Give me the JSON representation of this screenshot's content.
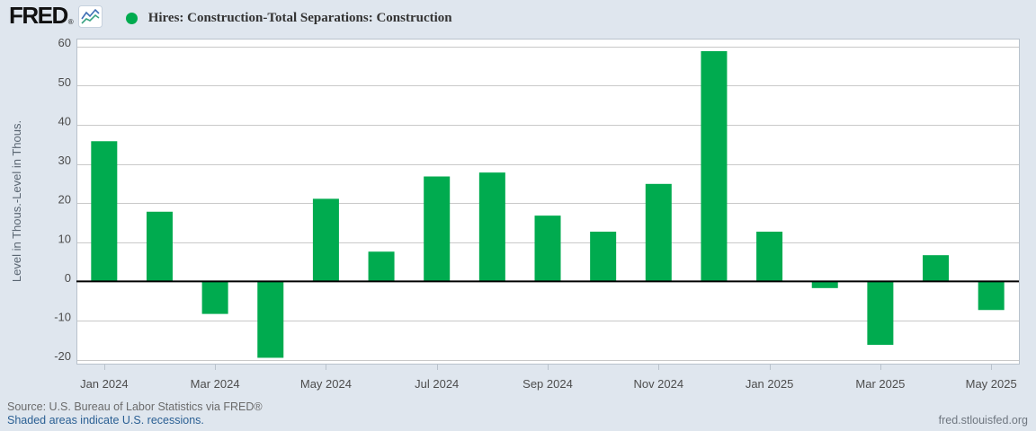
{
  "header": {
    "logo_text": "FRED",
    "logo_registered": "®",
    "title": "Hires: Construction-Total Separations: Construction"
  },
  "chart_data": {
    "type": "bar",
    "title": "Hires: Construction-Total Separations: Construction",
    "categories": [
      "Jan 2024",
      "Feb 2024",
      "Mar 2024",
      "Apr 2024",
      "May 2024",
      "Jun 2024",
      "Jul 2024",
      "Aug 2024",
      "Sep 2024",
      "Oct 2024",
      "Nov 2024",
      "Dec 2024",
      "Jan 2025",
      "Feb 2025",
      "Mar 2025",
      "Apr 2025",
      "May 2025"
    ],
    "values": [
      35.8,
      17.8,
      -8.3,
      -19.5,
      21.1,
      7.6,
      26.8,
      27.8,
      16.8,
      12.7,
      24.9,
      58.8,
      12.7,
      -1.7,
      -16.2,
      6.7,
      -7.3
    ],
    "ylabel": "Level in Thous.-Level in Thous.",
    "ylim": [
      -21,
      62
    ],
    "yticks": [
      60,
      50,
      40,
      30,
      20,
      10,
      0,
      -10,
      -20
    ],
    "xtick_labels": [
      "Jan 2024",
      "Mar 2024",
      "May 2024",
      "Jul 2024",
      "Sep 2024",
      "Nov 2024",
      "Jan 2025",
      "Mar 2025",
      "May 2025"
    ],
    "xtick_indices": [
      0,
      2,
      4,
      6,
      8,
      10,
      12,
      14,
      16
    ],
    "grid": true,
    "zero_line": true,
    "legend_position": "top-left"
  },
  "colors": {
    "background": "#dfe6ee",
    "plot_background": "#ffffff",
    "bar": "#00ab4f",
    "grid": "#c9c9c9",
    "axis_border": "#b9c2cc",
    "zero_line": "#000000",
    "tick_text": "#4d4d4d",
    "ylabel_text": "#5a6672",
    "link_blue": "#2b6094",
    "logo_line_blue": "#3d6eb4",
    "logo_line_green": "#3aa383"
  },
  "footer": {
    "source_line": "Source: U.S. Bureau of Labor Statistics via FRED®",
    "recessions_link": "Shaded areas indicate U.S. recessions.",
    "site_link": "fred.stlouisfed.org"
  }
}
